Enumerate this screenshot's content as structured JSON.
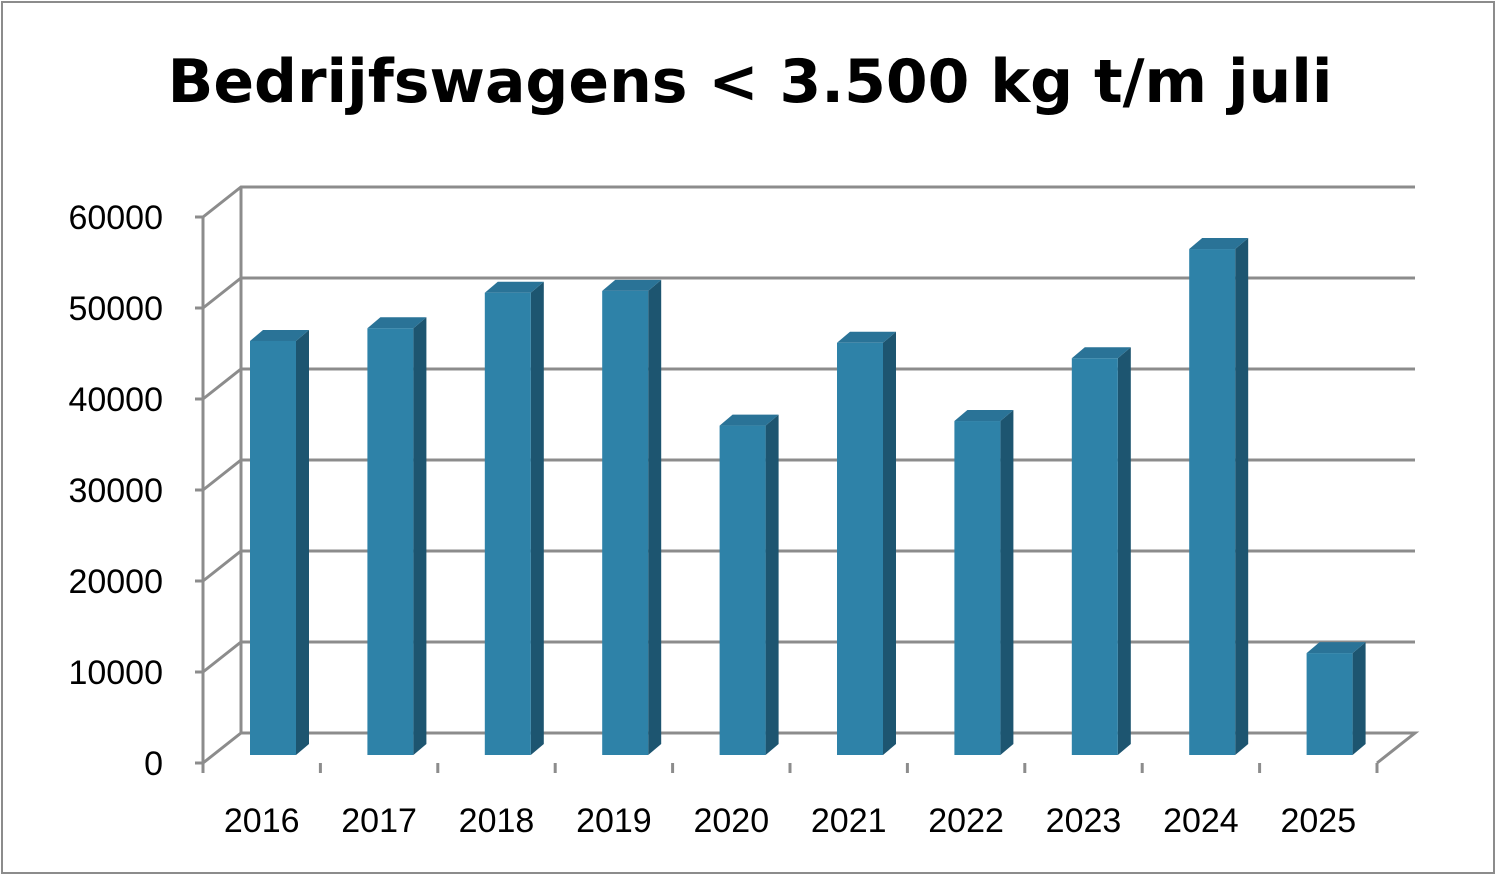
{
  "chart_data": {
    "type": "bar",
    "title": "Bedrijfswagens < 3.500 kg t/m juli",
    "categories": [
      "2016",
      "2017",
      "2018",
      "2019",
      "2020",
      "2021",
      "2022",
      "2023",
      "2024",
      "2025"
    ],
    "values": [
      45500,
      46900,
      50800,
      51000,
      36200,
      45300,
      36700,
      43600,
      55600,
      11200
    ],
    "xlabel": "",
    "ylabel": "",
    "ylim": [
      0,
      60000
    ],
    "yticks": [
      "0",
      "10000",
      "20000",
      "30000",
      "40000",
      "50000",
      "60000"
    ],
    "grid": true,
    "legend": "none",
    "style": "3d-column",
    "colors": {
      "bar_front": "#2e82a8",
      "bar_side": "#1d5570",
      "bar_top": "#2a7397",
      "grid": "#8c8c8c",
      "frame": "#8c8c8c"
    }
  }
}
